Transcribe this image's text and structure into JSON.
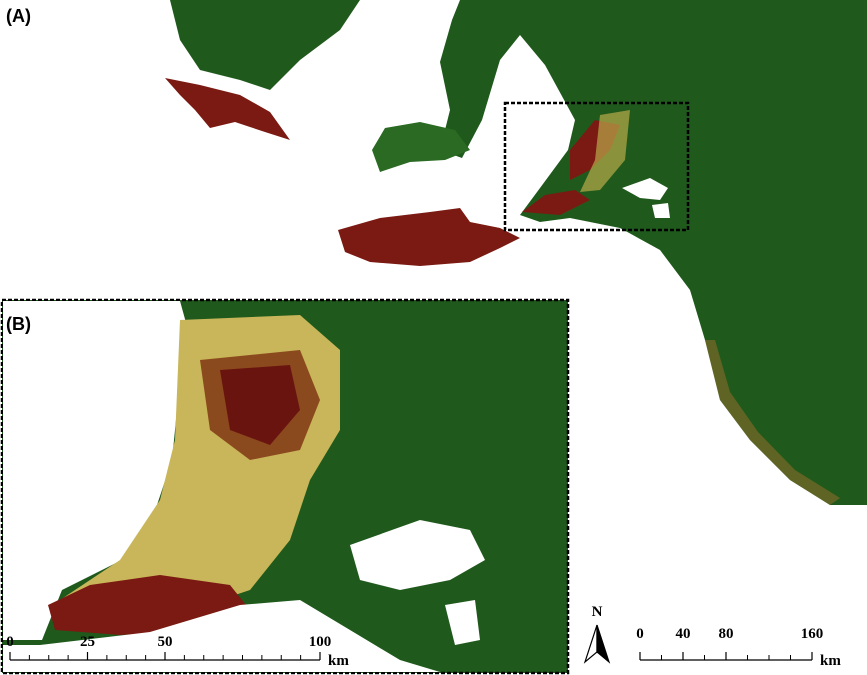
{
  "panel_a": {
    "label": "(A)",
    "scale": {
      "labels": [
        0,
        40,
        80,
        160
      ],
      "unit": "km"
    },
    "north": "N"
  },
  "panel_b": {
    "label": "(B)",
    "scale": {
      "labels": [
        0,
        25,
        50,
        100
      ],
      "unit": "km"
    }
  }
}
